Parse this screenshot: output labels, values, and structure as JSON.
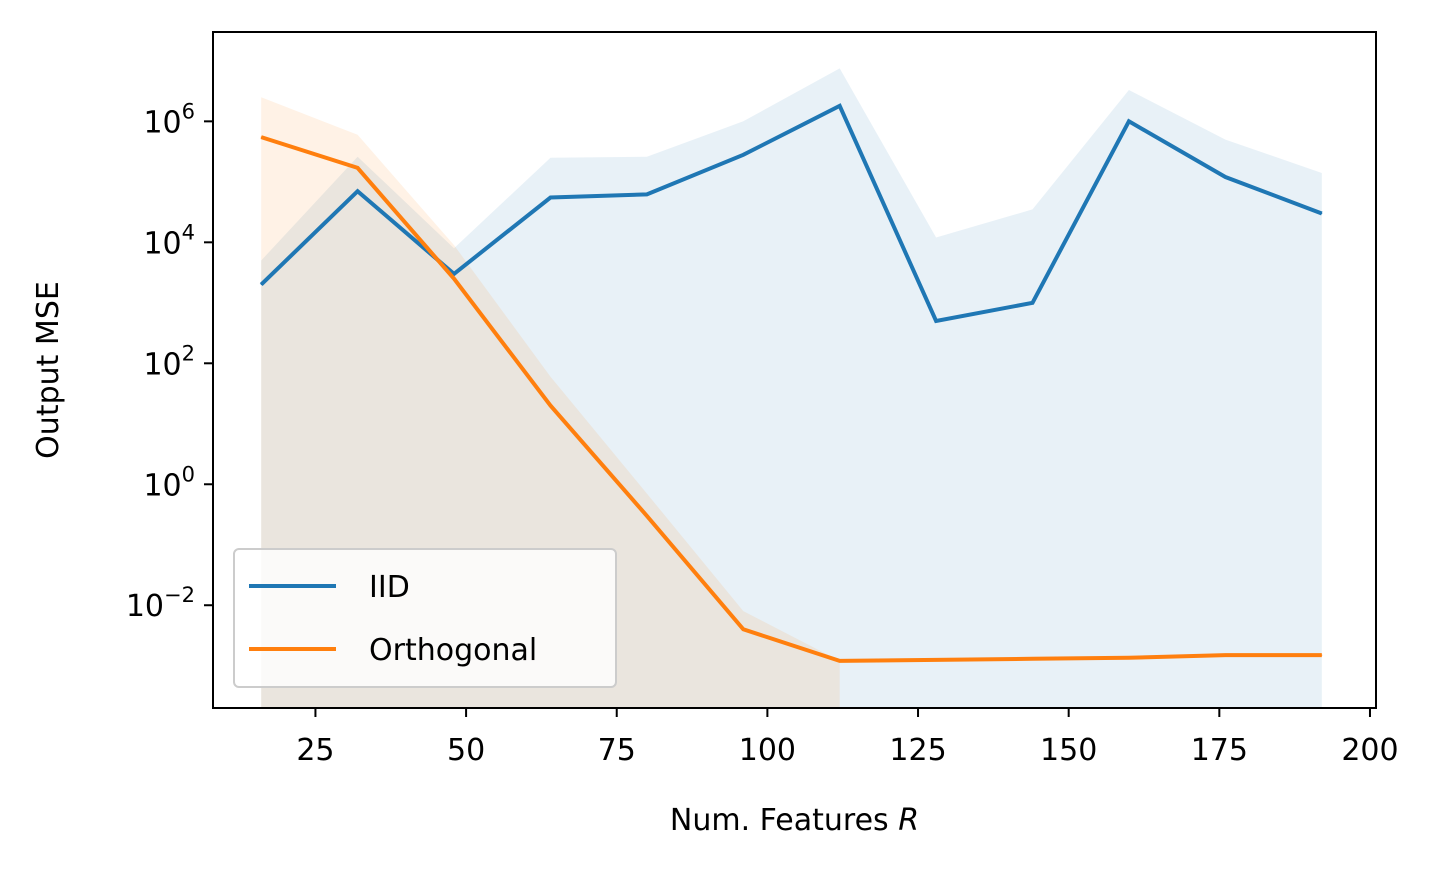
{
  "chart_data": {
    "type": "line",
    "xlabel": "Num. Features",
    "xlabel_var": "R",
    "ylabel": "Output MSE",
    "xscale": "linear",
    "yscale": "log",
    "xlim": [
      8,
      201
    ],
    "ylim": [
      0.0002,
      30000000
    ],
    "xticks": [
      25,
      50,
      75,
      100,
      125,
      150,
      175,
      200
    ],
    "yticks": [
      {
        "value": 0.01,
        "base": "10",
        "exp": "−2"
      },
      {
        "value": 1,
        "base": "10",
        "exp": "0"
      },
      {
        "value": 100,
        "base": "10",
        "exp": "2"
      },
      {
        "value": 10000,
        "base": "10",
        "exp": "4"
      },
      {
        "value": 1000000,
        "base": "10",
        "exp": "6"
      }
    ],
    "legend_position": "lower-left",
    "x": [
      16,
      32,
      48,
      64,
      80,
      96,
      112,
      128,
      144,
      160,
      176,
      192
    ],
    "series": [
      {
        "name": "IID",
        "color": "#1f77b4",
        "values": [
          2000,
          70000,
          3000,
          55000,
          62000,
          280000,
          1800000,
          500,
          1000,
          1000000,
          120000,
          30000
        ],
        "band_upper": [
          5000,
          260000,
          8000,
          250000,
          260000,
          1000000,
          7500000,
          12000,
          35000,
          3300000,
          500000,
          140000
        ],
        "band_lower": [
          0.0002,
          0.0002,
          0.0002,
          0.0002,
          0.0002,
          0.0002,
          0.0002,
          0.0002,
          0.0002,
          0.0002,
          0.0002,
          0.0002
        ]
      },
      {
        "name": "Orthogonal",
        "color": "#ff7f0e",
        "values": [
          550000,
          170000,
          2500,
          20,
          0.3,
          0.004,
          0.0012,
          0.00125,
          0.0013,
          0.00135,
          0.0015,
          0.0015
        ],
        "band_upper": [
          2500000,
          600000,
          9000,
          60,
          0.7,
          0.008,
          0.0012,
          null,
          null,
          null,
          null,
          null
        ],
        "band_lower": [
          0.0002,
          0.0002,
          0.0002,
          0.0002,
          0.0002,
          0.0002,
          0.0002,
          null,
          null,
          null,
          null,
          null
        ]
      }
    ]
  }
}
